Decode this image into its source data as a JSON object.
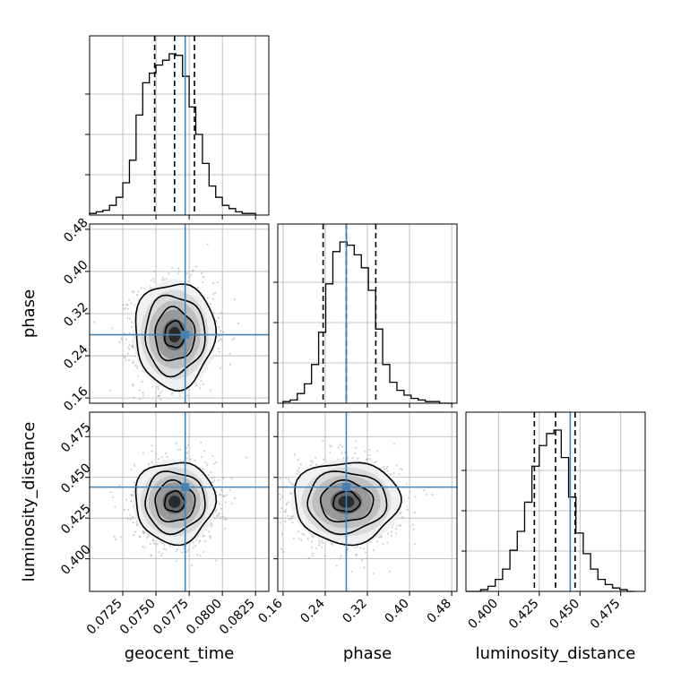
{
  "chart_data": {
    "type": "corner",
    "parameters": [
      "geocent_time",
      "phase",
      "luminosity_distance"
    ],
    "truths": {
      "geocent_time": 0.0772,
      "phase": 0.28,
      "luminosity_distance": 0.444
    },
    "quantiles": {
      "geocent_time": [
        0.0749,
        0.0764,
        0.0779
      ],
      "phase": [
        0.236,
        0.28,
        0.336
      ],
      "luminosity_distance": [
        0.422,
        0.435,
        0.447
      ]
    },
    "ranges": {
      "geocent_time": [
        0.07,
        0.0835
      ],
      "phase": [
        0.15,
        0.49
      ],
      "luminosity_distance": [
        0.38,
        0.49
      ]
    },
    "ticks": {
      "geocent_time": {
        "values": [
          0.0725,
          0.075,
          0.0775,
          0.08,
          0.0825
        ],
        "labels": [
          "0.0725",
          "0.0750",
          "0.0775",
          "0.0800",
          "0.0825"
        ]
      },
      "phase": {
        "values": [
          0.16,
          0.24,
          0.32,
          0.4,
          0.48
        ],
        "labels": [
          "0.16",
          "0.24",
          "0.32",
          "0.40",
          "0.48"
        ]
      },
      "luminosity_distance": {
        "values": [
          0.4,
          0.425,
          0.45,
          0.475
        ],
        "labels": [
          "0.400",
          "0.425",
          "0.450",
          "0.475"
        ]
      }
    },
    "grid": true,
    "truth_color": "#4682b4",
    "hist_color": "#000000",
    "histograms": {
      "geocent_time": {
        "edges": [
          0.07,
          0.0705,
          0.071,
          0.0715,
          0.072,
          0.0725,
          0.073,
          0.0735,
          0.074,
          0.0745,
          0.075,
          0.0755,
          0.076,
          0.0765,
          0.077,
          0.0775,
          0.078,
          0.0785,
          0.079,
          0.0795,
          0.08,
          0.0805,
          0.081,
          0.0815,
          0.082,
          0.0825
        ],
        "counts": [
          1,
          2,
          3,
          6,
          11,
          20,
          34,
          62,
          82,
          88,
          93,
          96,
          100,
          99,
          86,
          67,
          50,
          32,
          18,
          11,
          6,
          4,
          2,
          1,
          1
        ]
      },
      "phase": {
        "edges": [
          0.16,
          0.1735,
          0.187,
          0.2005,
          0.214,
          0.2275,
          0.241,
          0.2545,
          0.268,
          0.2815,
          0.295,
          0.3085,
          0.322,
          0.3355,
          0.349,
          0.3625,
          0.376,
          0.3895,
          0.403,
          0.4165,
          0.43,
          0.4435,
          0.457,
          0.4705,
          0.484
        ],
        "counts": [
          1,
          2,
          6,
          12,
          24,
          44,
          74,
          94,
          100,
          98,
          92,
          84,
          70,
          46,
          24,
          13,
          8,
          5,
          3,
          2,
          1,
          1,
          0,
          0
        ]
      },
      "luminosity_distance": {
        "edges": [
          0.38,
          0.3845,
          0.389,
          0.3935,
          0.398,
          0.4025,
          0.407,
          0.4115,
          0.416,
          0.4205,
          0.425,
          0.4295,
          0.434,
          0.4385,
          0.443,
          0.4475,
          0.452,
          0.4565,
          0.461,
          0.4655,
          0.47,
          0.4745,
          0.479,
          0.4835
        ],
        "counts": [
          0,
          0,
          1,
          3,
          7,
          13,
          24,
          35,
          52,
          73,
          85,
          92,
          94,
          78,
          55,
          34,
          22,
          13,
          7,
          4,
          2,
          1,
          0
        ]
      }
    },
    "contour_levels": [
      0.5,
      1.0,
      1.5,
      2.0
    ],
    "scatter_points": 1400
  }
}
